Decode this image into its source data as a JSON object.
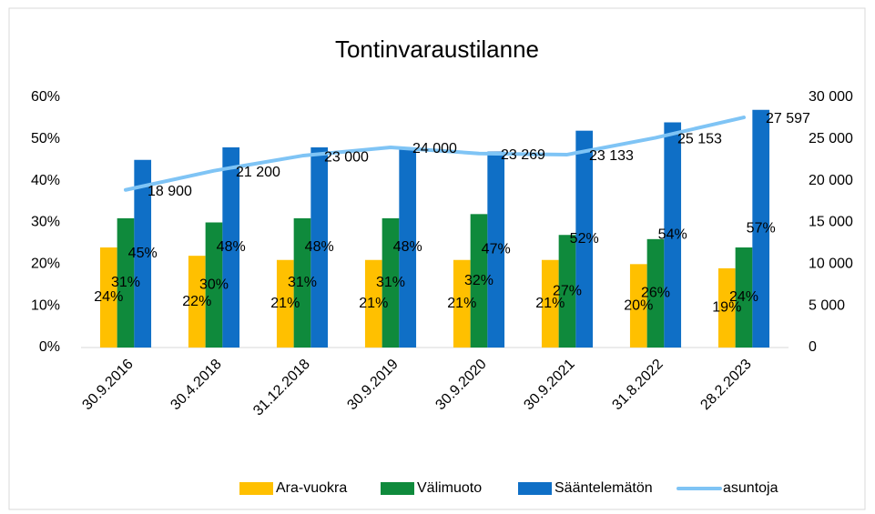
{
  "chart_data": {
    "type": "bar",
    "title": "Tontinvaraustilanne",
    "categories": [
      "30.9.2016",
      "30.4.2018",
      "31.12.2018",
      "30.9.2019",
      "30.9.2020",
      "30.9.2021",
      "31.8.2022",
      "28.2.2023"
    ],
    "series": [
      {
        "name": "Ara-vuokra",
        "color": "#ffc000",
        "type": "bar",
        "values": [
          24,
          22,
          21,
          21,
          21,
          21,
          20,
          19
        ],
        "value_labels": [
          "24%",
          "22%",
          "21%",
          "21%",
          "21%",
          "21%",
          "20%",
          "19%"
        ]
      },
      {
        "name": "Välimuoto",
        "color": "#0f8a3c",
        "type": "bar",
        "values": [
          31,
          30,
          31,
          31,
          32,
          27,
          26,
          24
        ],
        "value_labels": [
          "31%",
          "30%",
          "31%",
          "31%",
          "32%",
          "27%",
          "26%",
          "24%"
        ]
      },
      {
        "name": "Sääntelemätön",
        "color": "#0f6fc6",
        "type": "bar",
        "values": [
          45,
          48,
          48,
          48,
          47,
          52,
          54,
          57
        ],
        "value_labels": [
          "45%",
          "48%",
          "48%",
          "48%",
          "47%",
          "52%",
          "54%",
          "57%"
        ]
      },
      {
        "name": "asuntoja",
        "color": "#7fc4f5",
        "type": "line",
        "axis": "y2",
        "values": [
          18900,
          21200,
          23000,
          24000,
          23269,
          23133,
          25153,
          27597
        ],
        "value_labels": [
          "18 900",
          "21 200",
          "23 000",
          "24 000",
          "23 269",
          "23 133",
          "25 153",
          "27 597"
        ]
      }
    ],
    "ylim": [
      0,
      60
    ],
    "yticks": [
      {
        "value": 0,
        "label": "0%"
      },
      {
        "value": 10,
        "label": "10%"
      },
      {
        "value": 20,
        "label": "20%"
      },
      {
        "value": 30,
        "label": "30%"
      },
      {
        "value": 40,
        "label": "40%"
      },
      {
        "value": 50,
        "label": "50%"
      },
      {
        "value": 60,
        "label": "60%"
      }
    ],
    "y2lim": [
      0,
      30000
    ],
    "y2ticks": [
      0,
      {
        "value": 5000,
        "label": "5 000"
      },
      {
        "value": 10000,
        "label": "10 000"
      },
      {
        "value": 15000,
        "label": "15 000"
      },
      {
        "value": 20000,
        "label": "20 000"
      },
      {
        "value": 25000,
        "label": "25 000"
      },
      {
        "value": 30000,
        "label": "30 000"
      }
    ],
    "grid": false,
    "legend": "bottom"
  }
}
